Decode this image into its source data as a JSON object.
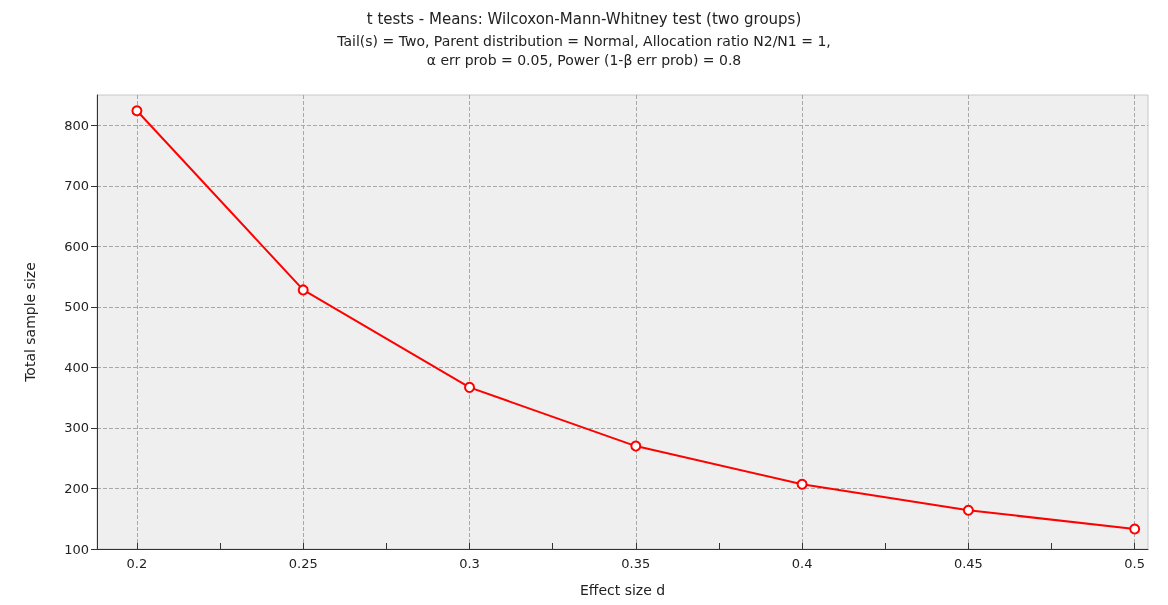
{
  "chart_data": {
    "type": "line",
    "title": "t tests - Means: Wilcoxon-Mann-Whitney test (two groups)",
    "subtitle": "Tail(s) = Two, Parent distribution = Normal, Allocation ratio N2/N1 = 1,\nα err prob = 0.05, Power (1-β err prob) = 0.8",
    "xlabel": "Effect size d",
    "ylabel": "Total sample size",
    "x": [
      0.2,
      0.25,
      0.3,
      0.35,
      0.4,
      0.45,
      0.5
    ],
    "series": [
      {
        "color": "#ff0000",
        "values": [
          824,
          528,
          367,
          270,
          207,
          164,
          133
        ]
      }
    ],
    "xlim": [
      0.188,
      0.504
    ],
    "xticks": [
      0.2,
      {
        "value": 0.225,
        "label": null
      },
      0.25,
      {
        "value": 0.275,
        "label": null
      },
      0.3,
      {
        "value": 0.325,
        "label": null
      },
      0.35,
      {
        "value": 0.375,
        "label": null
      },
      0.4,
      {
        "value": 0.425,
        "label": null
      },
      0.45,
      {
        "value": 0.475,
        "label": null
      },
      0.5
    ],
    "ylim": [
      100,
      850
    ],
    "yticks": [
      100,
      200,
      300,
      400,
      500,
      600,
      700,
      800
    ],
    "grid": true,
    "marker": "circle",
    "line_style": "solid"
  }
}
